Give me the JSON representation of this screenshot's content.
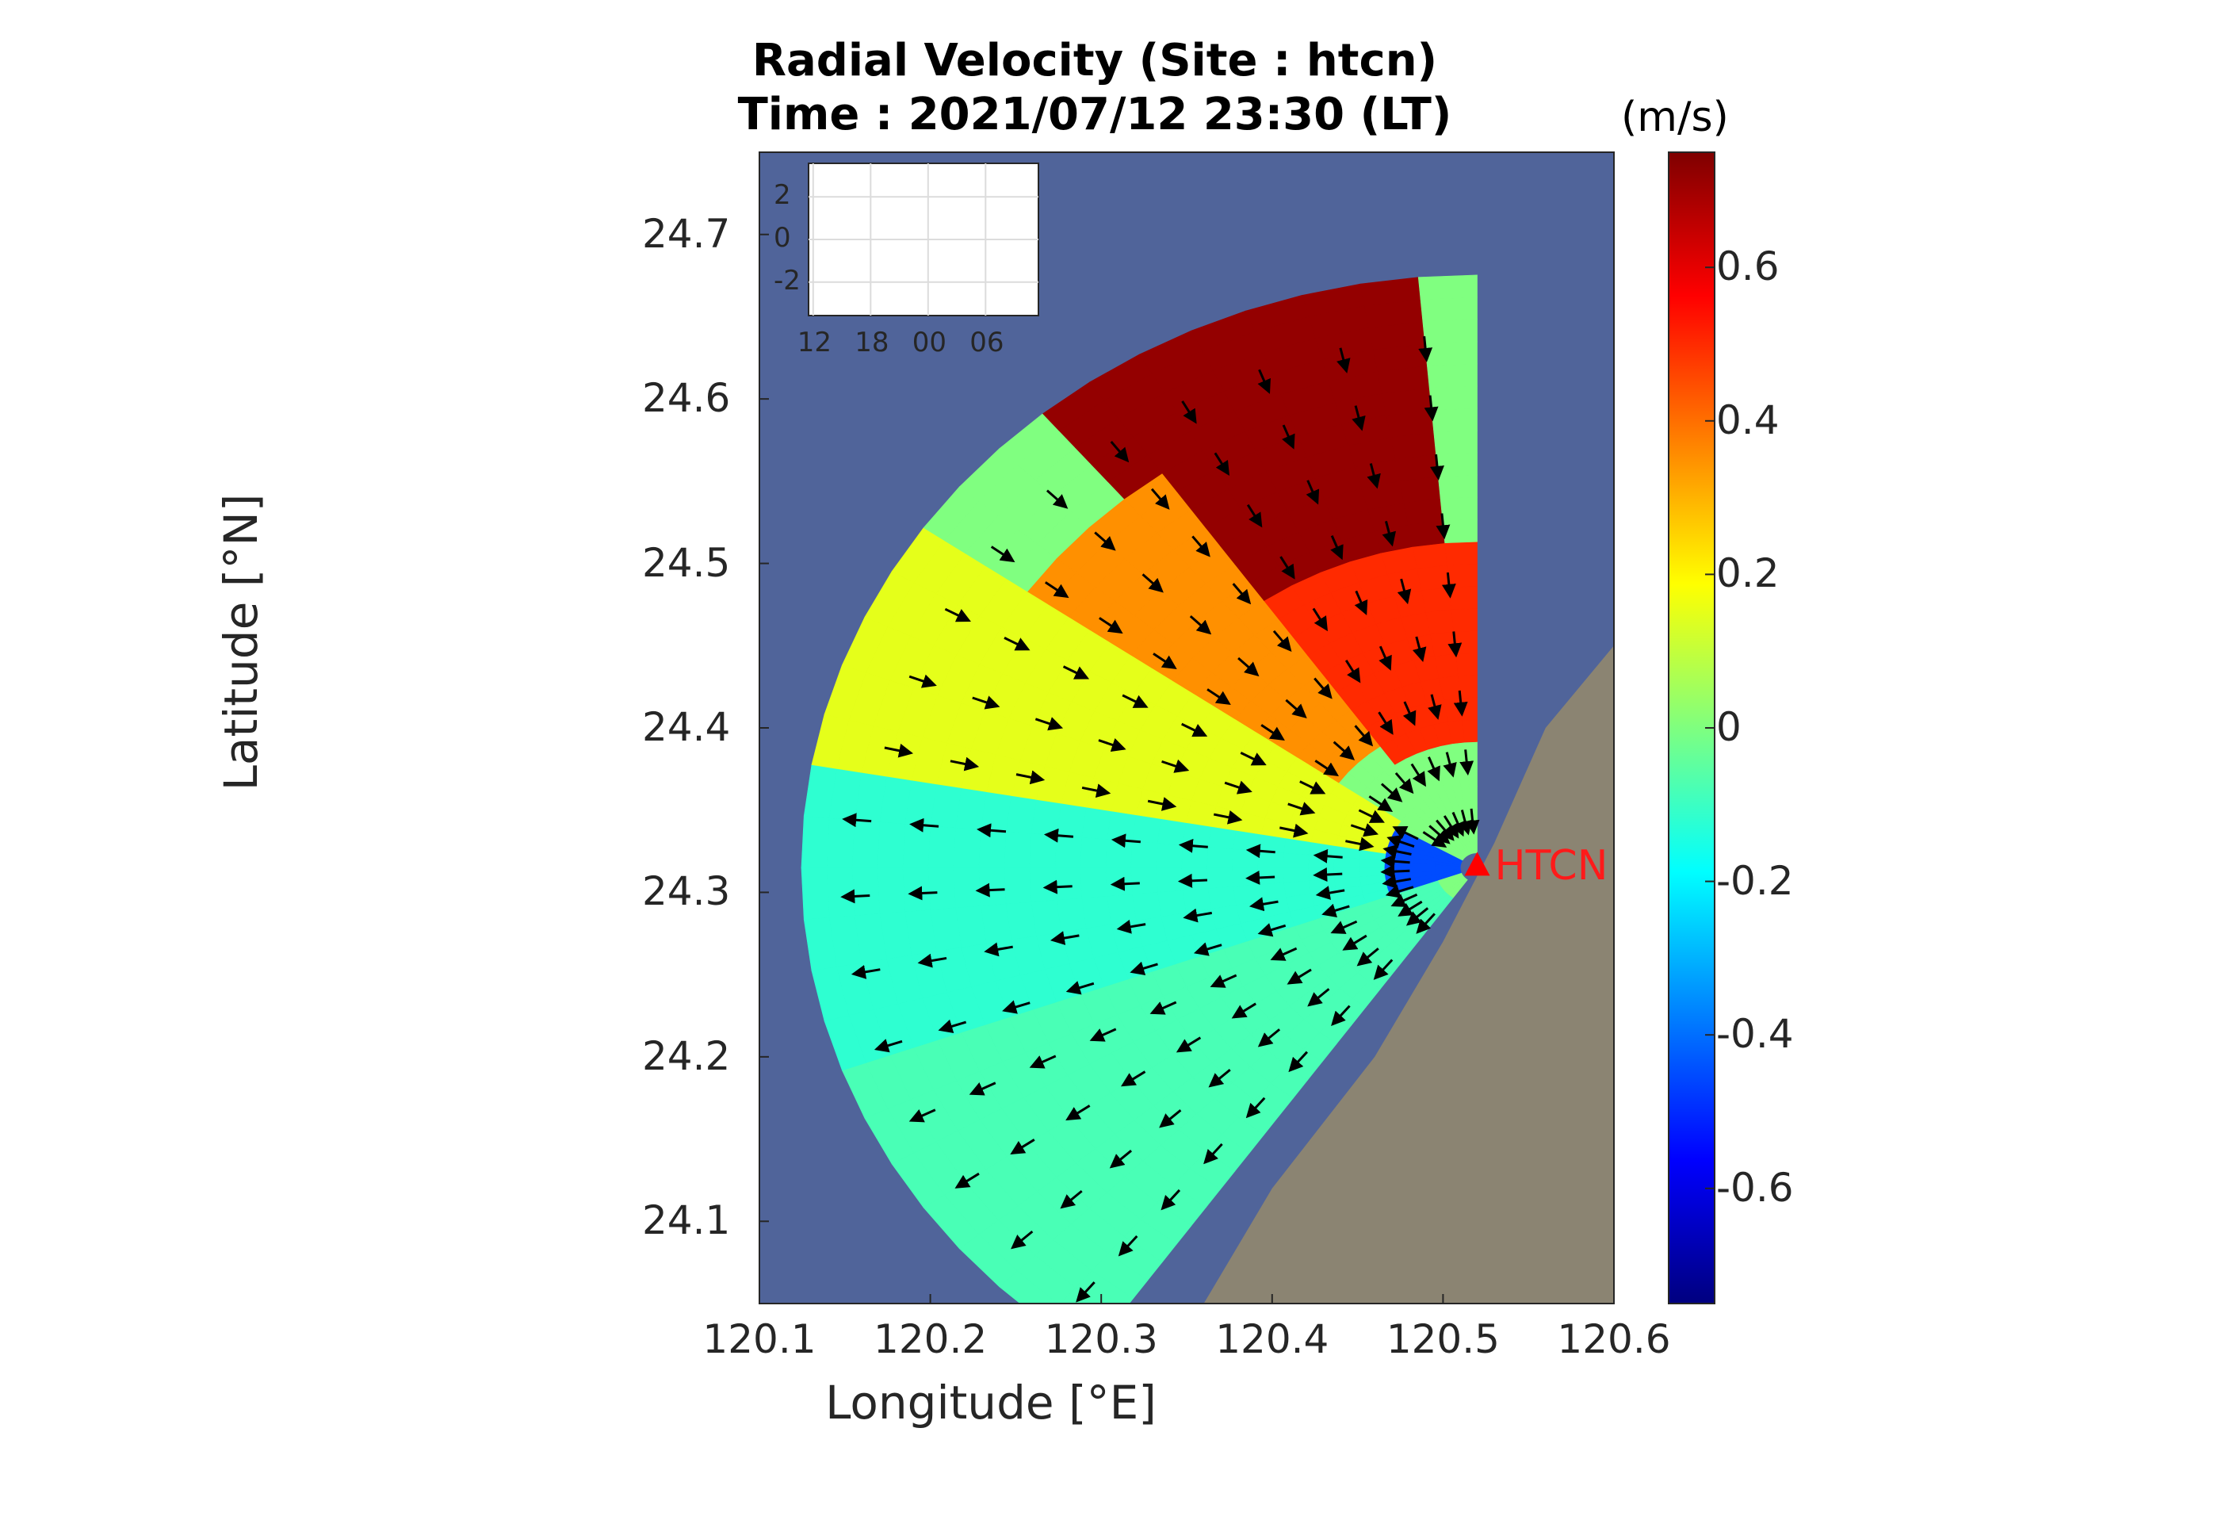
{
  "chart_data": {
    "type": "heatmap",
    "title": "Radial Velocity (Site : htcn)",
    "subtitle": "Time : 2021/07/12 23:30 (LT)",
    "xlabel": "Longitude [°E]",
    "ylabel": "Latitude [°N]",
    "xlim": [
      120.1,
      120.6
    ],
    "ylim": [
      24.05,
      24.75
    ],
    "x_ticks": [
      "120.1",
      "120.2",
      "120.3",
      "120.4",
      "120.5",
      "120.6"
    ],
    "y_ticks": [
      "24.1",
      "24.2",
      "24.3",
      "24.4",
      "24.5",
      "24.6",
      "24.7"
    ],
    "colorbar": {
      "unit": "(m/s)",
      "limits": [
        -0.75,
        0.75
      ],
      "ticks": [
        "-0.6",
        "-0.4",
        "-0.2",
        "0",
        "0.2",
        "0.4",
        "0.6"
      ],
      "colormap": "jet"
    },
    "site": {
      "name": "HTCN",
      "lon": 120.52,
      "lat": 24.315,
      "marker": "triangle",
      "color": "#ff0000"
    },
    "coverage": {
      "bearing_range_deg": [
        -145,
        0
      ],
      "max_range_km": 40
    },
    "field_regions": [
      {
        "bearings_deg": [
          -40,
          -5
        ],
        "range_km": [
          22,
          40
        ],
        "velocity": 0.72
      },
      {
        "bearings_deg": [
          -35,
          0
        ],
        "range_km": [
          8,
          22
        ],
        "velocity": 0.5
      },
      {
        "bearings_deg": [
          -65,
          -35
        ],
        "range_km": [
          10,
          32
        ],
        "velocity": 0.35
      },
      {
        "bearings_deg": [
          -80,
          -55
        ],
        "range_km": [
          5,
          40
        ],
        "velocity": 0.15
      },
      {
        "bearings_deg": [
          -110,
          -80
        ],
        "range_km": [
          3,
          40
        ],
        "velocity": -0.12
      },
      {
        "bearings_deg": [
          -145,
          -110
        ],
        "range_km": [
          3,
          40
        ],
        "velocity": -0.08
      },
      {
        "bearings_deg": [
          -110,
          -60
        ],
        "range_km": [
          1,
          6
        ],
        "velocity": -0.45
      }
    ],
    "background": {
      "sea_color": "#50649a",
      "land_color": "#8b8472"
    },
    "inset": {
      "x_ticks": [
        "12",
        "18",
        "00",
        "06"
      ],
      "y_ticks": [
        "2",
        "0",
        "-2"
      ]
    }
  }
}
